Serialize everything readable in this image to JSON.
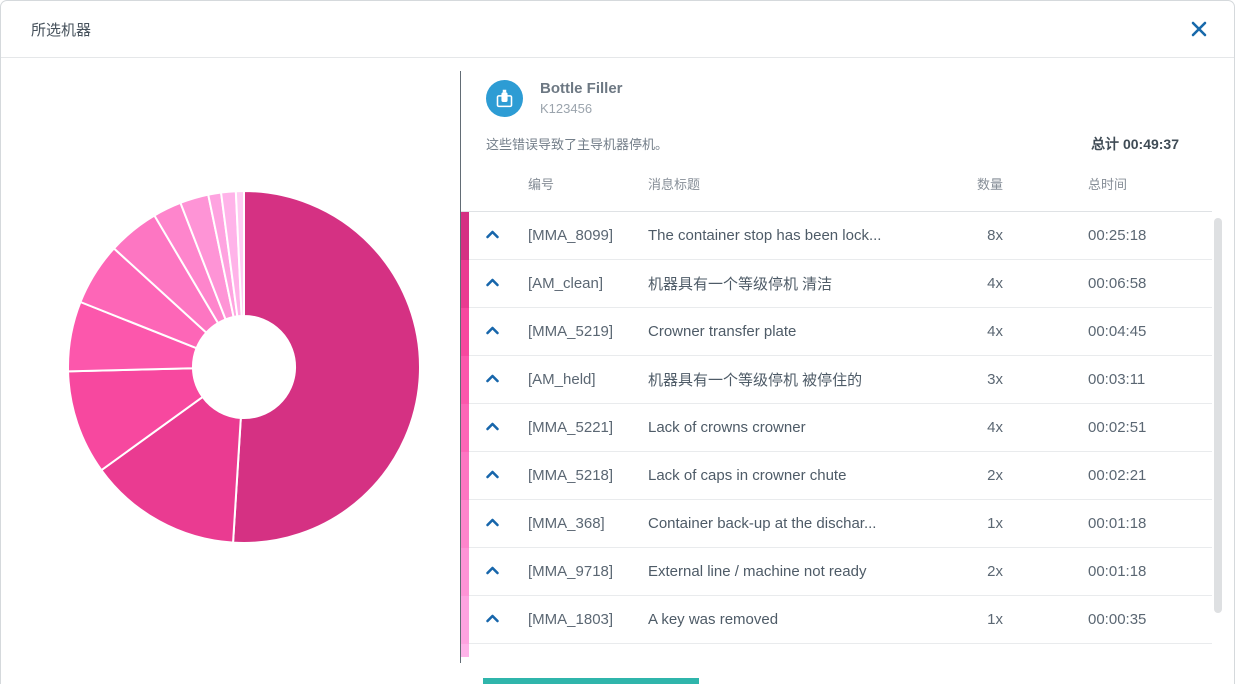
{
  "dialog": {
    "title": "所选机器"
  },
  "machine": {
    "name": "Bottle Filler",
    "serial": "K123456",
    "description": "这些错误导致了主导机器停机。",
    "total_label": "总计",
    "total_value": "00:49:37"
  },
  "table": {
    "headers": {
      "code": "编号",
      "message": "消息标题",
      "count": "数量",
      "duration": "总时间"
    },
    "rows": [
      {
        "code": "[MMA_8099]",
        "message": "The container stop has been lock...",
        "count": "8x",
        "duration": "00:25:18",
        "color": "#d53183"
      },
      {
        "code": "[AM_clean]",
        "message": "机器具有一个等级停机 清洁",
        "count": "4x",
        "duration": "00:06:58",
        "color": "#ea3b91"
      },
      {
        "code": "[MMA_5219]",
        "message": "Crowner transfer plate",
        "count": "4x",
        "duration": "00:04:45",
        "color": "#f7489f"
      },
      {
        "code": "[AM_held]",
        "message": "机器具有一个等级停机 被停住的",
        "count": "3x",
        "duration": "00:03:11",
        "color": "#fc57ac"
      },
      {
        "code": "[MMA_5221]",
        "message": "Lack of crowns crowner",
        "count": "4x",
        "duration": "00:02:51",
        "color": "#fd66b7"
      },
      {
        "code": "[MMA_5218]",
        "message": "Lack of caps in crowner chute",
        "count": "2x",
        "duration": "00:02:21",
        "color": "#fd76c2"
      },
      {
        "code": "[MMA_368]",
        "message": "Container back-up at the dischar...",
        "count": "1x",
        "duration": "00:01:18",
        "color": "#fe85cc"
      },
      {
        "code": "[MMA_9718]",
        "message": "External line / machine not ready",
        "count": "2x",
        "duration": "00:01:18",
        "color": "#fe94d6"
      },
      {
        "code": "[MMA_1803]",
        "message": "A key was removed",
        "count": "1x",
        "duration": "00:00:35",
        "color": "#fea3e0"
      }
    ],
    "partial_row_color": "#ffb3e9"
  },
  "chart_data": {
    "type": "pie",
    "subtype": "donut",
    "title": "",
    "legend": "none",
    "unit": "seconds",
    "total_seconds": 2977,
    "total_time": "00:49:37",
    "start_angle_deg": 0,
    "direction": "clockwise",
    "inner_radius_ratio": 0.29,
    "labels": [
      "[MMA_8099]",
      "[AM_clean]",
      "[MMA_5219]",
      "[AM_held]",
      "[MMA_5221]",
      "[MMA_5218]",
      "[MMA_368]",
      "[MMA_9718]",
      "[MMA_1803]",
      "",
      ""
    ],
    "values_seconds": [
      1518,
      418,
      285,
      191,
      171,
      141,
      78,
      78,
      35,
      40,
      22
    ],
    "durations": [
      "00:25:18",
      "00:06:58",
      "00:04:45",
      "00:03:11",
      "00:02:51",
      "00:02:21",
      "00:01:18",
      "00:01:18",
      "00:00:35",
      "",
      ""
    ],
    "colors": [
      "#d53183",
      "#ea3b91",
      "#f7489f",
      "#fc57ac",
      "#fd66b7",
      "#fd76c2",
      "#fe85cc",
      "#fe94d6",
      "#fea3e0",
      "#ffb3e9",
      "#ffcdf3"
    ]
  },
  "colors": {
    "accent_blue": "#1769aa",
    "avatar_blue": "#2d9cd4",
    "teal_scrollbar": "#2fb5ab",
    "divider_gray": "#626c75"
  }
}
